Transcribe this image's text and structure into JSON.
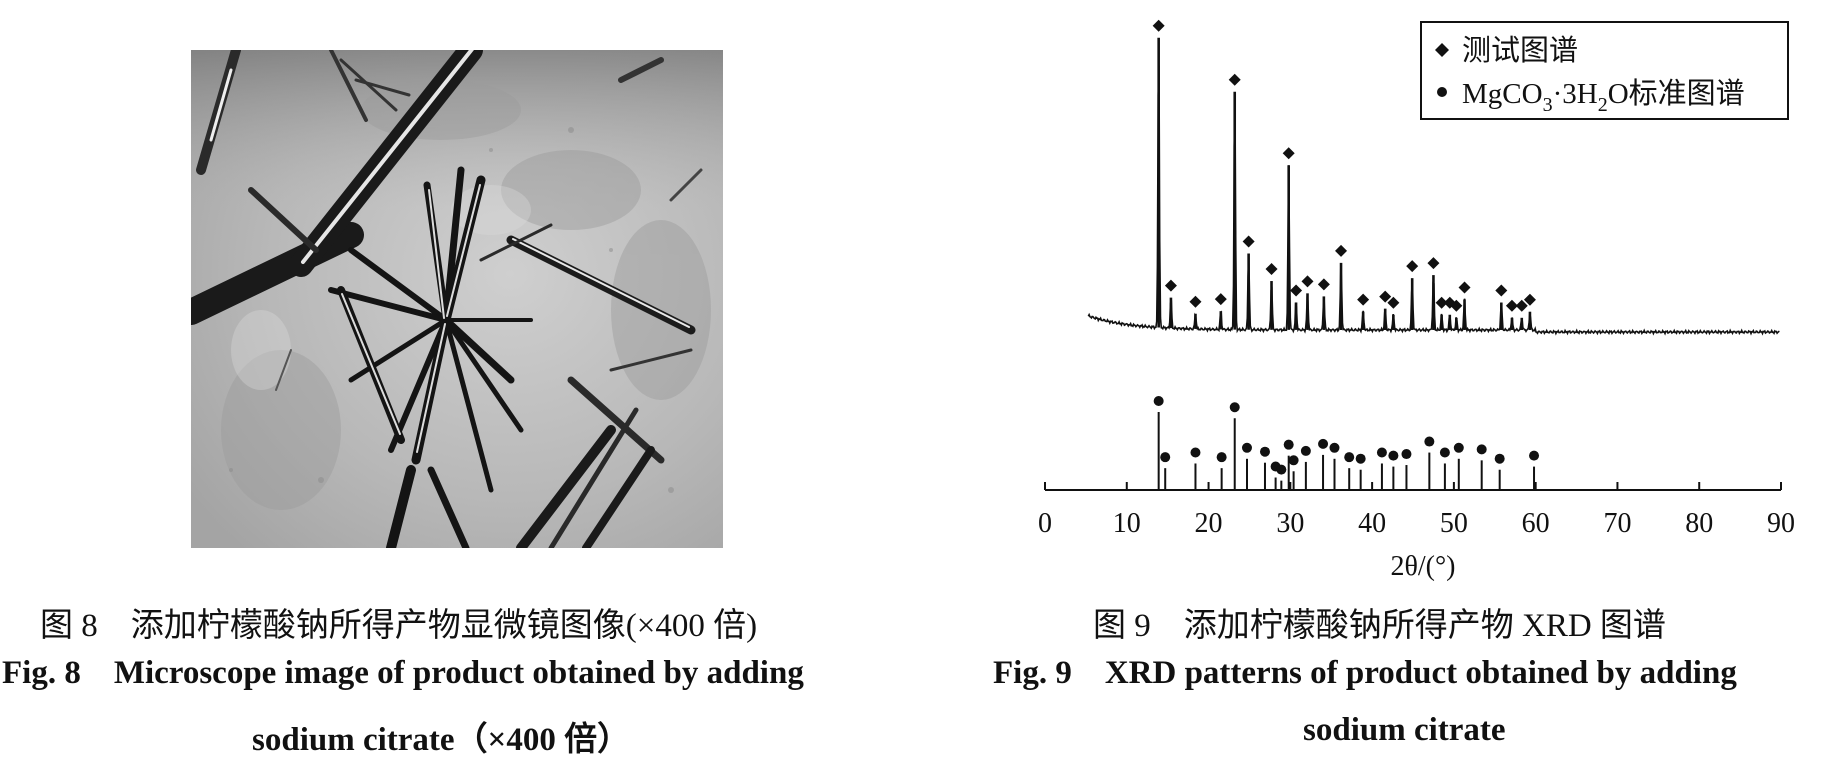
{
  "figure8": {
    "caption_zh": "图 8　添加柠檬酸钠所得产物显微镜图像(×400 倍)",
    "caption_en_label": "Fig. 8",
    "caption_en_line1": "Microscope image of product obtained by adding",
    "caption_en_line2": "sodium citrate（×400 倍）"
  },
  "figure9": {
    "caption_zh": "图 9　添加柠檬酸钠所得产物 XRD 图谱",
    "caption_en_label": "Fig. 9",
    "caption_en_line1": "XRD patterns of product obtained by adding",
    "caption_en_line2": "sodium citrate"
  },
  "colors": {
    "ink": "#111111",
    "image_bg": "#b9b9b9"
  },
  "chart_data": {
    "type": "line",
    "xlabel": "2θ/(°)",
    "xlim": [
      0,
      90
    ],
    "xticks": [
      "0",
      "10",
      "20",
      "30",
      "40",
      "50",
      "60",
      "70",
      "80",
      "90"
    ],
    "legend": {
      "placement": "top-right",
      "entries": [
        {
          "marker": "diamond",
          "label": "测试图谱"
        },
        {
          "marker": "circle",
          "label_parts": [
            "MgCO",
            "3",
            "·3H",
            "2",
            "O标准图谱"
          ]
        }
      ]
    },
    "series": [
      {
        "label": "测试图谱",
        "marker": "diamond",
        "peaks": [
          {
            "x": 13.9,
            "h": 0.95
          },
          {
            "x": 15.4,
            "h": 0.1
          },
          {
            "x": 18.4,
            "h": 0.05
          },
          {
            "x": 21.5,
            "h": 0.06
          },
          {
            "x": 23.2,
            "h": 0.78
          },
          {
            "x": 24.9,
            "h": 0.25
          },
          {
            "x": 27.7,
            "h": 0.16
          },
          {
            "x": 29.8,
            "h": 0.54
          },
          {
            "x": 30.7,
            "h": 0.09
          },
          {
            "x": 32.1,
            "h": 0.12
          },
          {
            "x": 34.1,
            "h": 0.11
          },
          {
            "x": 36.2,
            "h": 0.22
          },
          {
            "x": 38.9,
            "h": 0.06
          },
          {
            "x": 41.6,
            "h": 0.07
          },
          {
            "x": 42.6,
            "h": 0.05
          },
          {
            "x": 44.9,
            "h": 0.17
          },
          {
            "x": 47.5,
            "h": 0.18
          },
          {
            "x": 48.5,
            "h": 0.05
          },
          {
            "x": 49.5,
            "h": 0.05
          },
          {
            "x": 50.3,
            "h": 0.04
          },
          {
            "x": 51.3,
            "h": 0.1
          },
          {
            "x": 55.8,
            "h": 0.09
          },
          {
            "x": 57.1,
            "h": 0.04
          },
          {
            "x": 58.3,
            "h": 0.04
          },
          {
            "x": 59.3,
            "h": 0.06
          }
        ]
      },
      {
        "label": "MgCO3·3H2O标准图谱",
        "marker": "circle",
        "peaks": [
          {
            "x": 13.9,
            "h": 1.0
          },
          {
            "x": 14.7,
            "h": 0.28
          },
          {
            "x": 18.4,
            "h": 0.34
          },
          {
            "x": 21.6,
            "h": 0.28
          },
          {
            "x": 23.2,
            "h": 0.92
          },
          {
            "x": 24.7,
            "h": 0.4
          },
          {
            "x": 26.9,
            "h": 0.35
          },
          {
            "x": 28.2,
            "h": 0.16
          },
          {
            "x": 28.9,
            "h": 0.12
          },
          {
            "x": 29.8,
            "h": 0.44
          },
          {
            "x": 30.4,
            "h": 0.24
          },
          {
            "x": 31.9,
            "h": 0.36
          },
          {
            "x": 34.0,
            "h": 0.45
          },
          {
            "x": 35.4,
            "h": 0.4
          },
          {
            "x": 37.2,
            "h": 0.28
          },
          {
            "x": 38.6,
            "h": 0.26
          },
          {
            "x": 41.2,
            "h": 0.34
          },
          {
            "x": 42.6,
            "h": 0.3
          },
          {
            "x": 44.2,
            "h": 0.32
          },
          {
            "x": 47.0,
            "h": 0.48
          },
          {
            "x": 48.9,
            "h": 0.34
          },
          {
            "x": 50.6,
            "h": 0.4
          },
          {
            "x": 53.4,
            "h": 0.38
          },
          {
            "x": 55.6,
            "h": 0.26
          },
          {
            "x": 59.8,
            "h": 0.3
          }
        ]
      }
    ]
  }
}
